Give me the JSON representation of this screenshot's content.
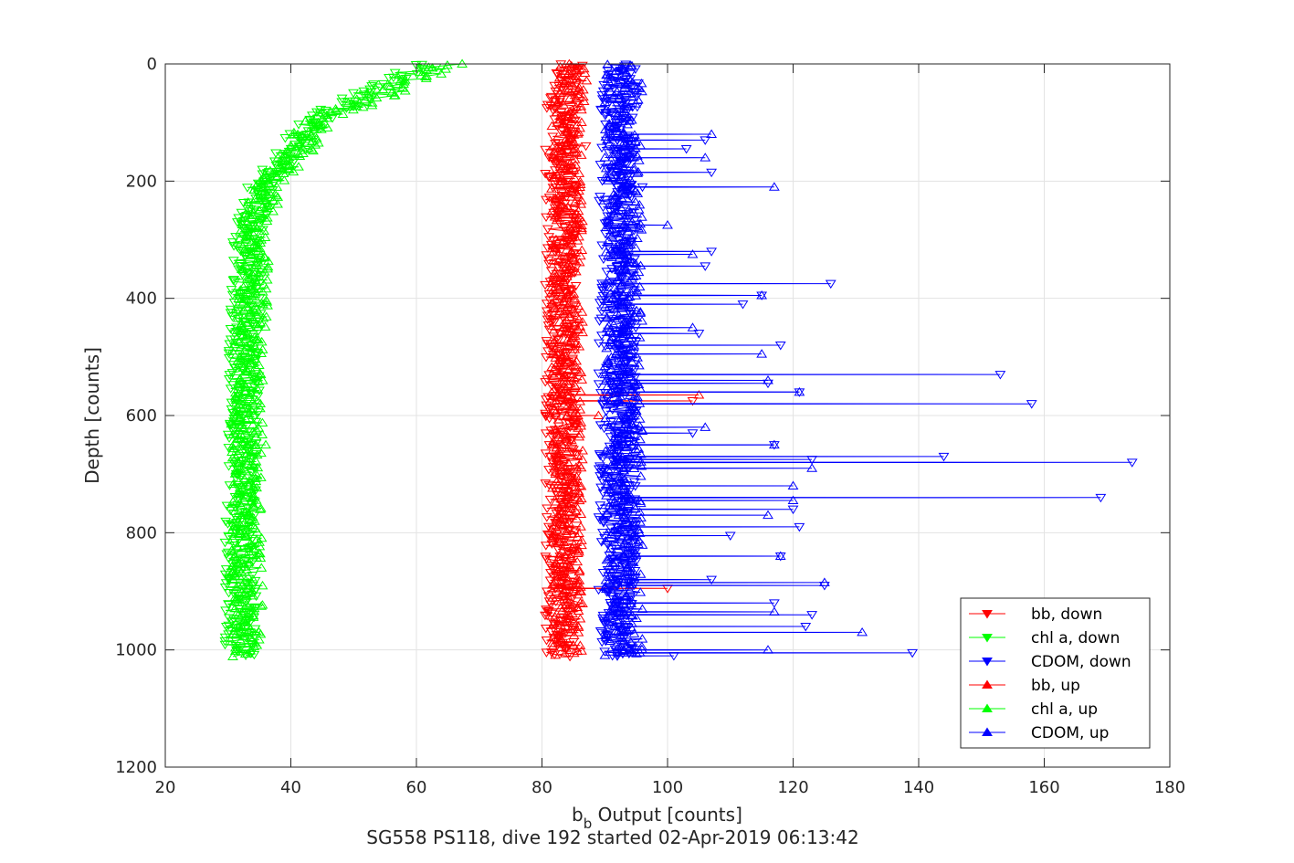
{
  "chart_data": {
    "type": "scatter",
    "xlabel_main": "b",
    "xlabel_sub": "b",
    "xlabel_rest": " Output [counts]",
    "ylabel": "Depth [counts]",
    "caption": "SG558 PS118, dive 192 started 02-Apr-2019 06:13:42",
    "xlim": [
      20,
      180
    ],
    "ylim": [
      0,
      1200
    ],
    "y_reversed": true,
    "grid": true,
    "x_ticks": [
      "20",
      "40",
      "60",
      "80",
      "100",
      "120",
      "140",
      "160",
      "180"
    ],
    "y_ticks": [
      "0",
      "200",
      "400",
      "600",
      "800",
      "1000",
      "1200"
    ],
    "legend_position": "bottom-right",
    "series": [
      {
        "name": "bb, down",
        "color": "#ff0000",
        "marker": "triangle-down",
        "profile": [
          [
            0,
            84
          ],
          [
            100,
            83
          ],
          [
            200,
            83
          ],
          [
            300,
            83
          ],
          [
            400,
            83
          ],
          [
            500,
            83
          ],
          [
            600,
            83
          ],
          [
            700,
            83
          ],
          [
            800,
            83
          ],
          [
            900,
            83
          ],
          [
            1010,
            83
          ]
        ],
        "spread": 2.5,
        "outliers": [
          [
            575,
            104
          ],
          [
            895,
            100
          ],
          [
            140,
            87
          ]
        ]
      },
      {
        "name": "chl a, down",
        "color": "#00ff00",
        "marker": "triangle-down",
        "profile": [
          [
            0,
            62
          ],
          [
            50,
            52
          ],
          [
            100,
            43
          ],
          [
            150,
            40
          ],
          [
            200,
            36
          ],
          [
            250,
            34
          ],
          [
            300,
            33
          ],
          [
            400,
            33
          ],
          [
            500,
            32.5
          ],
          [
            600,
            32.5
          ],
          [
            700,
            32.5
          ],
          [
            800,
            32
          ],
          [
            900,
            32
          ],
          [
            1010,
            32
          ]
        ],
        "spread": 2.5,
        "outliers": []
      },
      {
        "name": "CDOM, down",
        "color": "#0000ff",
        "marker": "triangle-down",
        "profile": [
          [
            0,
            93
          ],
          [
            100,
            92
          ],
          [
            200,
            92
          ],
          [
            300,
            92
          ],
          [
            400,
            92
          ],
          [
            500,
            92
          ],
          [
            600,
            92
          ],
          [
            700,
            92
          ],
          [
            800,
            92
          ],
          [
            900,
            92
          ],
          [
            1010,
            92
          ]
        ],
        "spread": 3,
        "outliers": [
          [
            130,
            106
          ],
          [
            145,
            103
          ],
          [
            185,
            107
          ],
          [
            210,
            96
          ],
          [
            320,
            107
          ],
          [
            345,
            106
          ],
          [
            375,
            126
          ],
          [
            395,
            115
          ],
          [
            410,
            112
          ],
          [
            460,
            105
          ],
          [
            480,
            118
          ],
          [
            530,
            153
          ],
          [
            545,
            116
          ],
          [
            560,
            121
          ],
          [
            580,
            158
          ],
          [
            630,
            104
          ],
          [
            650,
            117
          ],
          [
            670,
            144
          ],
          [
            675,
            123
          ],
          [
            680,
            174
          ],
          [
            740,
            169
          ],
          [
            760,
            120
          ],
          [
            790,
            121
          ],
          [
            805,
            110
          ],
          [
            840,
            118
          ],
          [
            880,
            107
          ],
          [
            890,
            125
          ],
          [
            920,
            117
          ],
          [
            940,
            123
          ],
          [
            960,
            122
          ],
          [
            1005,
            139
          ],
          [
            1010,
            101
          ]
        ]
      },
      {
        "name": "bb, up",
        "color": "#ff0000",
        "marker": "triangle-up",
        "profile": [
          [
            0,
            85
          ],
          [
            100,
            84
          ],
          [
            200,
            84
          ],
          [
            300,
            84
          ],
          [
            400,
            84
          ],
          [
            500,
            84
          ],
          [
            600,
            84
          ],
          [
            700,
            84
          ],
          [
            800,
            84
          ],
          [
            900,
            84
          ],
          [
            1010,
            84
          ]
        ],
        "spread": 2.5,
        "outliers": [
          [
            565,
            105
          ],
          [
            600,
            89
          ]
        ]
      },
      {
        "name": "chl a, up",
        "color": "#00ff00",
        "marker": "triangle-up",
        "profile": [
          [
            0,
            65
          ],
          [
            50,
            55
          ],
          [
            100,
            44
          ],
          [
            150,
            41
          ],
          [
            200,
            37
          ],
          [
            250,
            35
          ],
          [
            300,
            34
          ],
          [
            400,
            34
          ],
          [
            500,
            33.5
          ],
          [
            600,
            33
          ],
          [
            700,
            33
          ],
          [
            800,
            33
          ],
          [
            900,
            33
          ],
          [
            1010,
            33
          ]
        ],
        "spread": 2.5,
        "outliers": [
          [
            650,
            36
          ]
        ]
      },
      {
        "name": "CDOM, up",
        "color": "#0000ff",
        "marker": "triangle-up",
        "profile": [
          [
            0,
            93
          ],
          [
            100,
            93
          ],
          [
            200,
            93
          ],
          [
            300,
            93
          ],
          [
            400,
            93
          ],
          [
            500,
            93
          ],
          [
            600,
            93
          ],
          [
            700,
            93
          ],
          [
            800,
            93
          ],
          [
            900,
            93
          ],
          [
            1010,
            93
          ]
        ],
        "spread": 3,
        "outliers": [
          [
            120,
            107
          ],
          [
            160,
            106
          ],
          [
            210,
            117
          ],
          [
            275,
            100
          ],
          [
            325,
            104
          ],
          [
            395,
            115
          ],
          [
            450,
            104
          ],
          [
            495,
            115
          ],
          [
            540,
            116
          ],
          [
            560,
            121
          ],
          [
            620,
            106
          ],
          [
            650,
            117
          ],
          [
            690,
            123
          ],
          [
            720,
            120
          ],
          [
            745,
            120
          ],
          [
            770,
            116
          ],
          [
            840,
            118
          ],
          [
            885,
            125
          ],
          [
            935,
            117
          ],
          [
            970,
            131
          ],
          [
            1000,
            116
          ]
        ]
      }
    ]
  }
}
